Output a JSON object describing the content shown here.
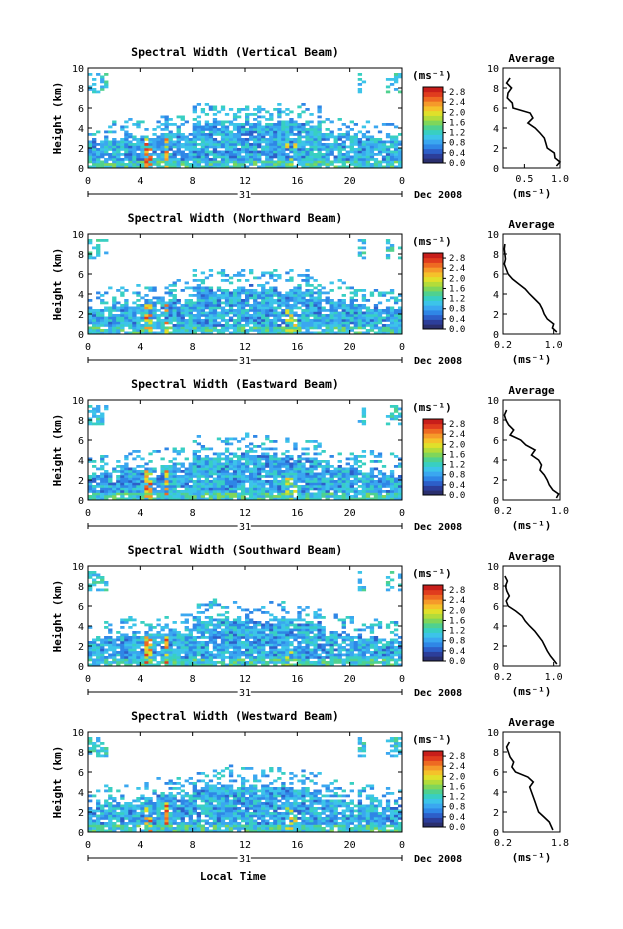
{
  "colors": {
    "colorbar": [
      "#2a2f6e",
      "#2c3e9a",
      "#2d5fc9",
      "#2f86e6",
      "#3aa7f0",
      "#3cc4e9",
      "#38cfc2",
      "#4fd18f",
      "#7fd65a",
      "#b3dc3a",
      "#e0e02a",
      "#f5c22a",
      "#f59a2a",
      "#ee6a22",
      "#e03c1e",
      "#c81e1a"
    ],
    "trace": "#000000"
  },
  "footer": {
    "xlabel": "Local Time"
  },
  "chart_data": [
    {
      "type": "heatmap",
      "title": "Spectral Width (Vertical Beam)",
      "ylabel": "Height (km)",
      "xlim": [
        0,
        24
      ],
      "ylim": [
        0,
        10
      ],
      "xticks": [
        "0",
        "4",
        "8",
        "12",
        "16",
        "20",
        "0"
      ],
      "yticks": [
        "0",
        "2",
        "4",
        "6",
        "8",
        "10"
      ],
      "date_day": "31",
      "date_label": "Dec 2008",
      "colorbar": {
        "unit": "(ms⁻¹)",
        "ticks": [
          "0.0",
          "0.4",
          "0.8",
          "1.2",
          "1.6",
          "2.0",
          "2.4",
          "2.8"
        ],
        "range": [
          0,
          3.0
        ]
      },
      "average": {
        "title": "Average",
        "xlabel": "(ms⁻¹)",
        "xlim": [
          0.2,
          1.0
        ],
        "xticks": [
          "0.5",
          "1.0"
        ],
        "xtick_values": [
          0.5,
          1.0
        ],
        "ylim": [
          0,
          10
        ],
        "yticks": [
          "0",
          "2",
          "4",
          "6",
          "8",
          "10"
        ],
        "profile": [
          [
            0.95,
            0.2
          ],
          [
            1.0,
            0.6
          ],
          [
            0.93,
            1.0
          ],
          [
            0.92,
            1.5
          ],
          [
            0.82,
            2.0
          ],
          [
            0.8,
            2.5
          ],
          [
            0.78,
            3.0
          ],
          [
            0.72,
            3.5
          ],
          [
            0.65,
            4.0
          ],
          [
            0.55,
            4.5
          ],
          [
            0.62,
            5.0
          ],
          [
            0.58,
            5.5
          ],
          [
            0.34,
            6.0
          ],
          [
            0.33,
            6.5
          ],
          [
            0.26,
            7.0
          ],
          [
            0.27,
            7.5
          ],
          [
            0.32,
            8.0
          ],
          [
            0.25,
            8.5
          ],
          [
            0.3,
            9.0
          ]
        ]
      }
    },
    {
      "type": "heatmap",
      "title": "Spectral Width (Northward Beam)",
      "ylabel": "Height (km)",
      "xlim": [
        0,
        24
      ],
      "ylim": [
        0,
        10
      ],
      "xticks": [
        "0",
        "4",
        "8",
        "12",
        "16",
        "20",
        "0"
      ],
      "yticks": [
        "0",
        "2",
        "4",
        "6",
        "8",
        "10"
      ],
      "date_day": "31",
      "date_label": "Dec 2008",
      "colorbar": {
        "unit": "(ms⁻¹)",
        "ticks": [
          "0.0",
          "0.4",
          "0.8",
          "1.2",
          "1.6",
          "2.0",
          "2.4",
          "2.8"
        ],
        "range": [
          0,
          3.0
        ]
      },
      "average": {
        "title": "Average",
        "xlabel": "(ms⁻¹)",
        "xlim": [
          0.2,
          1.1
        ],
        "xticks": [
          "0.2",
          "1.0"
        ],
        "xtick_values": [
          0.2,
          1.0
        ],
        "ylim": [
          0,
          10
        ],
        "yticks": [
          "0",
          "2",
          "4",
          "6",
          "8",
          "10"
        ],
        "profile": [
          [
            1.05,
            0.2
          ],
          [
            0.98,
            0.6
          ],
          [
            1.0,
            1.0
          ],
          [
            0.9,
            1.5
          ],
          [
            0.85,
            2.0
          ],
          [
            0.82,
            2.5
          ],
          [
            0.78,
            3.0
          ],
          [
            0.7,
            3.5
          ],
          [
            0.62,
            4.0
          ],
          [
            0.55,
            4.5
          ],
          [
            0.45,
            5.0
          ],
          [
            0.35,
            5.5
          ],
          [
            0.28,
            6.0
          ],
          [
            0.25,
            6.5
          ],
          [
            0.22,
            7.0
          ],
          [
            0.24,
            7.5
          ],
          [
            0.23,
            8.0
          ],
          [
            0.22,
            8.5
          ],
          [
            0.23,
            9.0
          ]
        ]
      }
    },
    {
      "type": "heatmap",
      "title": "Spectral Width (Eastward Beam)",
      "ylabel": "Height (km)",
      "xlim": [
        0,
        24
      ],
      "ylim": [
        0,
        10
      ],
      "xticks": [
        "0",
        "4",
        "8",
        "12",
        "16",
        "20",
        "0"
      ],
      "yticks": [
        "0",
        "2",
        "4",
        "6",
        "8",
        "10"
      ],
      "date_day": "31",
      "date_label": "Dec 2008",
      "colorbar": {
        "unit": "(ms⁻¹)",
        "ticks": [
          "0.0",
          "0.4",
          "0.8",
          "1.2",
          "1.6",
          "2.0",
          "2.4",
          "2.8"
        ],
        "range": [
          0,
          3.0
        ]
      },
      "average": {
        "title": "Average",
        "xlabel": "(ms⁻¹)",
        "xlim": [
          0.2,
          1.0
        ],
        "xticks": [
          "0.2",
          "1.0"
        ],
        "xtick_values": [
          0.2,
          1.0
        ],
        "ylim": [
          0,
          10
        ],
        "yticks": [
          "0",
          "2",
          "4",
          "6",
          "8",
          "10"
        ],
        "profile": [
          [
            0.95,
            0.2
          ],
          [
            0.98,
            0.6
          ],
          [
            0.9,
            1.0
          ],
          [
            0.85,
            1.5
          ],
          [
            0.82,
            2.0
          ],
          [
            0.78,
            2.5
          ],
          [
            0.72,
            3.0
          ],
          [
            0.74,
            3.5
          ],
          [
            0.7,
            4.0
          ],
          [
            0.6,
            4.5
          ],
          [
            0.65,
            5.0
          ],
          [
            0.52,
            5.5
          ],
          [
            0.45,
            6.0
          ],
          [
            0.3,
            6.5
          ],
          [
            0.35,
            7.0
          ],
          [
            0.28,
            7.5
          ],
          [
            0.24,
            8.0
          ],
          [
            0.22,
            8.5
          ],
          [
            0.25,
            9.0
          ]
        ]
      }
    },
    {
      "type": "heatmap",
      "title": "Spectral Width (Southward Beam)",
      "ylabel": "Height (km)",
      "xlim": [
        0,
        24
      ],
      "ylim": [
        0,
        10
      ],
      "xticks": [
        "0",
        "4",
        "8",
        "12",
        "16",
        "20",
        "0"
      ],
      "yticks": [
        "0",
        "2",
        "4",
        "6",
        "8",
        "10"
      ],
      "date_day": "31",
      "date_label": "Dec 2008",
      "colorbar": {
        "unit": "(ms⁻¹)",
        "ticks": [
          "0.0",
          "0.4",
          "0.8",
          "1.2",
          "1.6",
          "2.0",
          "2.4",
          "2.8"
        ],
        "range": [
          0,
          3.0
        ]
      },
      "average": {
        "title": "Average",
        "xlabel": "(ms⁻¹)",
        "xlim": [
          0.2,
          1.1
        ],
        "xticks": [
          "0.2",
          "1.0"
        ],
        "xtick_values": [
          0.2,
          1.0
        ],
        "ylim": [
          0,
          10
        ],
        "yticks": [
          "0",
          "2",
          "4",
          "6",
          "8",
          "10"
        ],
        "profile": [
          [
            1.05,
            0.2
          ],
          [
            1.0,
            0.6
          ],
          [
            0.95,
            1.0
          ],
          [
            0.9,
            1.5
          ],
          [
            0.86,
            2.0
          ],
          [
            0.82,
            2.5
          ],
          [
            0.76,
            3.0
          ],
          [
            0.7,
            3.5
          ],
          [
            0.62,
            4.0
          ],
          [
            0.55,
            4.5
          ],
          [
            0.5,
            5.0
          ],
          [
            0.4,
            5.5
          ],
          [
            0.28,
            6.0
          ],
          [
            0.25,
            6.5
          ],
          [
            0.3,
            7.0
          ],
          [
            0.26,
            7.5
          ],
          [
            0.24,
            8.0
          ],
          [
            0.27,
            8.5
          ],
          [
            0.23,
            9.0
          ]
        ]
      }
    },
    {
      "type": "heatmap",
      "title": "Spectral Width (Westward Beam)",
      "ylabel": "Height (km)",
      "xlim": [
        0,
        24
      ],
      "ylim": [
        0,
        10
      ],
      "xticks": [
        "0",
        "4",
        "8",
        "12",
        "16",
        "20",
        "0"
      ],
      "yticks": [
        "0",
        "2",
        "4",
        "6",
        "8",
        "10"
      ],
      "date_day": "31",
      "date_label": "Dec 2008",
      "xlabel": "Local Time",
      "colorbar": {
        "unit": "(ms⁻¹)",
        "ticks": [
          "0.0",
          "0.4",
          "0.8",
          "1.2",
          "1.6",
          "2.0",
          "2.4",
          "2.8"
        ],
        "range": [
          0,
          3.0
        ]
      },
      "average": {
        "title": "Average",
        "xlabel": "(ms⁻¹)",
        "xlim": [
          0.2,
          1.8
        ],
        "xticks": [
          "0.2",
          "1.8"
        ],
        "xtick_values": [
          0.2,
          1.8
        ],
        "ylim": [
          0,
          10
        ],
        "yticks": [
          "0",
          "2",
          "4",
          "6",
          "8",
          "10"
        ],
        "profile": [
          [
            1.6,
            0.2
          ],
          [
            1.55,
            0.6
          ],
          [
            1.5,
            1.0
          ],
          [
            1.35,
            1.5
          ],
          [
            1.2,
            2.0
          ],
          [
            1.15,
            2.5
          ],
          [
            1.1,
            3.0
          ],
          [
            1.05,
            3.5
          ],
          [
            1.0,
            4.0
          ],
          [
            0.95,
            4.5
          ],
          [
            1.05,
            5.0
          ],
          [
            0.9,
            5.5
          ],
          [
            0.55,
            6.0
          ],
          [
            0.45,
            6.5
          ],
          [
            0.5,
            7.0
          ],
          [
            0.4,
            7.5
          ],
          [
            0.35,
            8.0
          ],
          [
            0.3,
            8.5
          ],
          [
            0.38,
            9.0
          ]
        ]
      }
    }
  ]
}
